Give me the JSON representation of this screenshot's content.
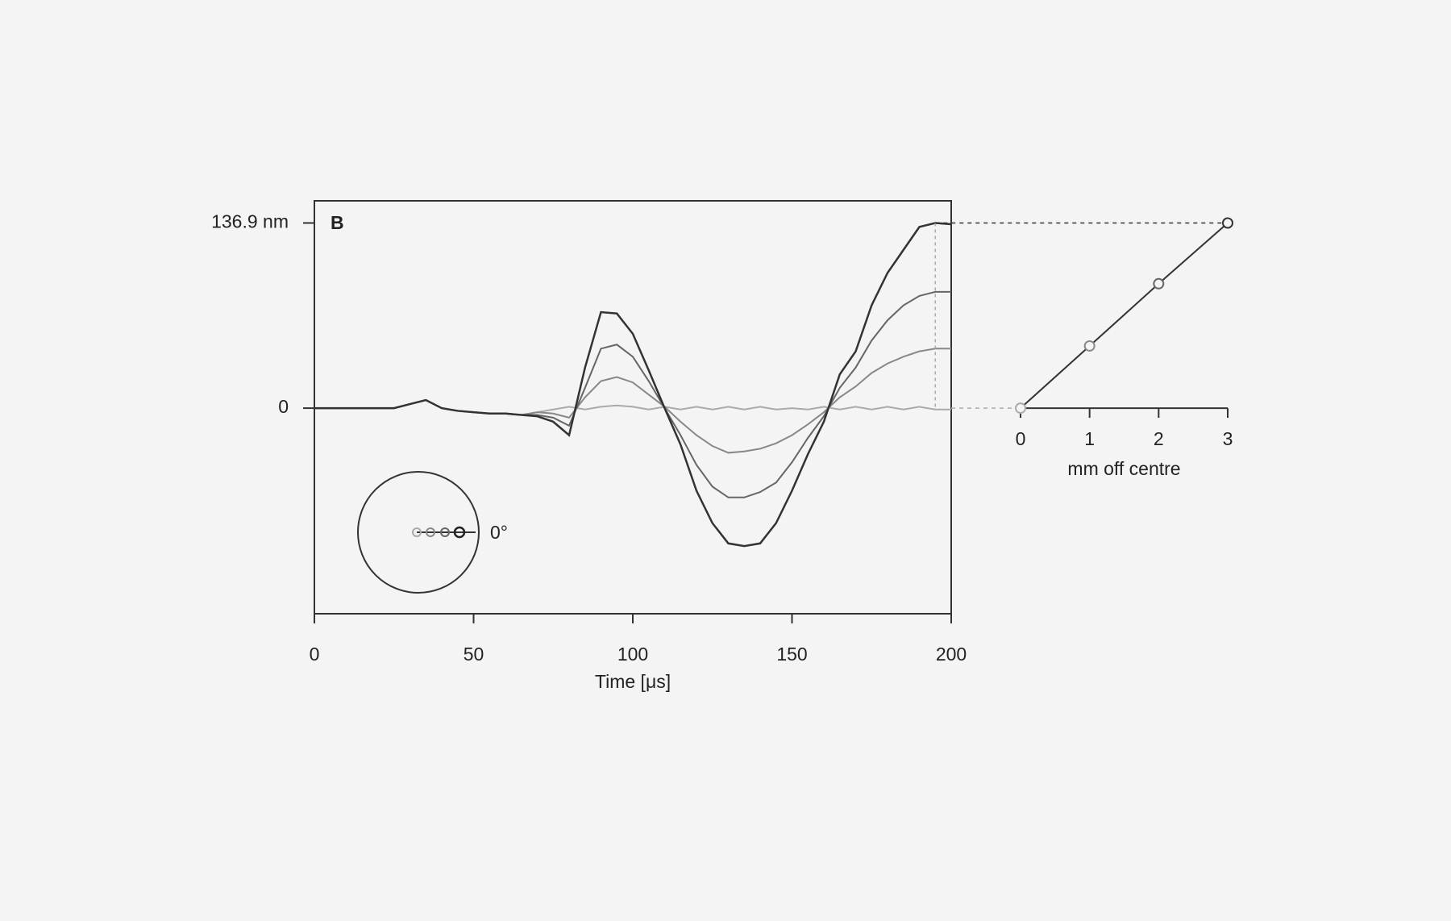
{
  "chart_data": [
    {
      "type": "line",
      "label": "B",
      "annotation": "0°",
      "xlabel": "Time [μs]",
      "x": [
        0,
        5,
        10,
        15,
        20,
        25,
        30,
        35,
        40,
        45,
        50,
        55,
        60,
        65,
        70,
        75,
        80,
        85,
        90,
        95,
        100,
        105,
        110,
        115,
        120,
        125,
        130,
        135,
        140,
        145,
        150,
        155,
        160,
        165,
        170,
        175,
        180,
        185,
        190,
        195,
        200
      ],
      "series": [
        {
          "color": "#aaaaaa",
          "values": [
            0,
            0,
            0,
            0,
            0,
            0,
            3,
            6,
            0,
            -2,
            -3,
            -4,
            -4,
            -5,
            -3,
            -1,
            1,
            -1,
            1,
            2,
            1,
            -1,
            1,
            -1,
            1,
            -1,
            1,
            -1,
            1,
            -1,
            0,
            -1,
            1,
            -1,
            1,
            -1,
            1,
            -1,
            1,
            -1,
            -1
          ]
        },
        {
          "color": "#888888",
          "values": [
            0,
            0,
            0,
            0,
            0,
            0,
            3,
            6,
            0,
            -2,
            -3,
            -4,
            -4,
            -5,
            -3,
            -4,
            -7,
            8,
            20,
            23,
            19,
            10,
            1,
            -10,
            -20,
            -28,
            -33,
            -32,
            -30,
            -26,
            -20,
            -12,
            -3,
            8,
            16,
            26,
            33,
            38,
            42,
            44,
            44
          ]
        },
        {
          "color": "#666666",
          "values": [
            0,
            0,
            0,
            0,
            0,
            0,
            3,
            6,
            0,
            -2,
            -3,
            -4,
            -4,
            -5,
            -5,
            -7,
            -13,
            15,
            44,
            47,
            38,
            20,
            0,
            -20,
            -42,
            -58,
            -66,
            -66,
            -62,
            -55,
            -40,
            -22,
            -6,
            15,
            30,
            50,
            65,
            76,
            83,
            86,
            86
          ]
        },
        {
          "color": "#333333",
          "values": [
            0,
            0,
            0,
            0,
            0,
            0,
            3,
            6,
            0,
            -2,
            -3,
            -4,
            -4,
            -5,
            -6,
            -10,
            -20,
            30,
            71,
            70,
            55,
            28,
            0,
            -27,
            -61,
            -85,
            -100,
            -102,
            -100,
            -85,
            -61,
            -34,
            -10,
            25,
            42,
            76,
            100,
            117,
            134,
            136.9,
            136
          ]
        }
      ],
      "xlim": [
        0,
        200
      ],
      "xticks": [
        0,
        50,
        100,
        150,
        200
      ],
      "ylim": [
        -152,
        153.3
      ],
      "yticks": [
        0,
        {
          "value": 136.9,
          "label": "136.9 nm"
        }
      ]
    },
    {
      "type": "scatter",
      "xlabel": "mm off centre",
      "x": [
        0,
        1,
        2,
        3
      ],
      "values": [
        0,
        46,
        92,
        136.9
      ],
      "color": "#333333",
      "xlim": [
        0,
        3
      ],
      "xticks": [
        0,
        1,
        2,
        3
      ],
      "ylim": [
        -152,
        153.3
      ]
    }
  ]
}
